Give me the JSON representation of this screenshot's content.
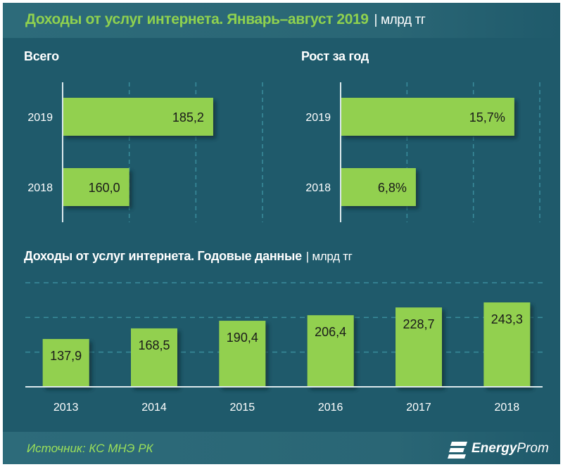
{
  "header": {
    "title": "Доходы от услуг интернета. Январь–август 2019",
    "unit": "| млрд тг"
  },
  "footer": {
    "source": "Источник: КС МНЭ РК",
    "logo_bold": "Energy",
    "logo_rest": "Prom"
  },
  "colors": {
    "background": "#1f5a6b",
    "bar": "#92d050",
    "title_green": "#8fd14f",
    "gridline": "#3a8d9c"
  },
  "chart_data": [
    {
      "type": "bar",
      "orientation": "horizontal",
      "title": "Всего",
      "categories": [
        "2019",
        "2018"
      ],
      "values": [
        185.2,
        160.0
      ],
      "value_labels": [
        "185,2",
        "160,0"
      ],
      "xlim": [
        140,
        200
      ],
      "gridlines": [
        160,
        180,
        200
      ],
      "grid": true
    },
    {
      "type": "bar",
      "orientation": "horizontal",
      "title": "Рост за год",
      "categories": [
        "2019",
        "2018"
      ],
      "values": [
        15.7,
        6.8
      ],
      "value_labels": [
        "15,7%",
        "6,8%"
      ],
      "xlim": [
        0,
        18
      ],
      "gridlines": [
        6,
        12,
        18
      ],
      "grid": true
    },
    {
      "type": "bar",
      "orientation": "vertical",
      "title": "Доходы от услуг интернета. Годовые данные",
      "unit": "| млрд тг",
      "categories": [
        "2013",
        "2014",
        "2015",
        "2016",
        "2017",
        "2018"
      ],
      "values": [
        137.9,
        168.5,
        190.4,
        206.4,
        228.7,
        243.3
      ],
      "value_labels": [
        "137,9",
        "168,5",
        "190,4",
        "206,4",
        "228,7",
        "243,3"
      ],
      "ylim": [
        0,
        300
      ],
      "gridlines": [
        100,
        200,
        300
      ],
      "grid": true
    }
  ]
}
